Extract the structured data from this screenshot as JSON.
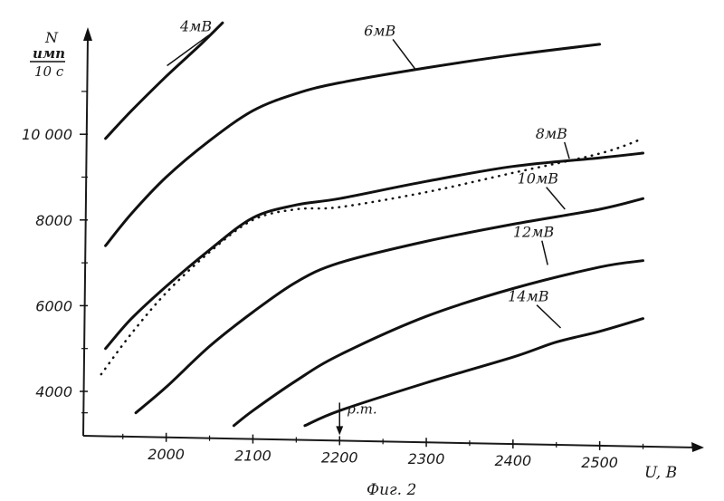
{
  "chart_data": {
    "type": "line",
    "ylabel_top": "N",
    "ylabel_unit_num": "имп",
    "ylabel_unit_den": "10 с",
    "xlabel": "U, В",
    "caption": "Фиг. 2",
    "annotation": "р.т.",
    "annotation_x": 2200,
    "xlim": [
      1920,
      2520
    ],
    "ylim": [
      3000,
      12200
    ],
    "x_ticks": [
      2000,
      2100,
      2200,
      2300,
      2400,
      2500
    ],
    "x_tick_labels": [
      "2000",
      "2100",
      "2200",
      "2300",
      "2400",
      "2500"
    ],
    "y_ticks": [
      4000,
      6000,
      8000,
      10000
    ],
    "y_tick_labels": [
      "4000",
      "6000",
      "8000",
      "10 000"
    ],
    "series": [
      {
        "name": "4мВ",
        "style": "solid",
        "label_at": [
          2016,
          12400
        ],
        "leader_to": [
          2001,
          11600
        ],
        "points": [
          [
            1930,
            9900
          ],
          [
            1960,
            10550
          ],
          [
            2000,
            11350
          ],
          [
            2040,
            12100
          ],
          [
            2065,
            12600
          ]
        ]
      },
      {
        "name": "6мВ",
        "style": "solid",
        "label_at": [
          2228,
          12300
        ],
        "leader_to": [
          2288,
          11500
        ],
        "points": [
          [
            1930,
            7400
          ],
          [
            1960,
            8150
          ],
          [
            2000,
            9000
          ],
          [
            2050,
            9850
          ],
          [
            2100,
            10550
          ],
          [
            2150,
            10950
          ],
          [
            2200,
            11200
          ],
          [
            2300,
            11550
          ],
          [
            2400,
            11850
          ],
          [
            2500,
            12100
          ]
        ]
      },
      {
        "name": "8мВ",
        "style": "solid",
        "label_at": [
          2426,
          9900
        ],
        "leader_to": [
          2465,
          9430
        ],
        "points": [
          [
            1930,
            5000
          ],
          [
            1960,
            5700
          ],
          [
            2000,
            6450
          ],
          [
            2050,
            7300
          ],
          [
            2100,
            8050
          ],
          [
            2150,
            8350
          ],
          [
            2200,
            8500
          ],
          [
            2300,
            8900
          ],
          [
            2400,
            9250
          ],
          [
            2500,
            9450
          ],
          [
            2550,
            9560
          ]
        ]
      },
      {
        "name": "",
        "style": "dotted",
        "points": [
          [
            1925,
            4400
          ],
          [
            1960,
            5350
          ],
          [
            2000,
            6300
          ],
          [
            2050,
            7250
          ],
          [
            2100,
            8000
          ],
          [
            2150,
            8250
          ],
          [
            2200,
            8300
          ],
          [
            2300,
            8650
          ],
          [
            2400,
            9100
          ],
          [
            2500,
            9550
          ],
          [
            2550,
            9900
          ]
        ]
      },
      {
        "name": "10мВ",
        "style": "solid",
        "label_at": [
          2405,
          8850
        ],
        "leader_to": [
          2460,
          8250
        ],
        "points": [
          [
            1965,
            3500
          ],
          [
            2000,
            4100
          ],
          [
            2050,
            5050
          ],
          [
            2100,
            5850
          ],
          [
            2150,
            6550
          ],
          [
            2200,
            7000
          ],
          [
            2300,
            7500
          ],
          [
            2400,
            7900
          ],
          [
            2500,
            8250
          ],
          [
            2550,
            8500
          ]
        ]
      },
      {
        "name": "12мВ",
        "style": "solid",
        "label_at": [
          2400,
          7600
        ],
        "leader_to": [
          2440,
          6950
        ],
        "points": [
          [
            2078,
            3200
          ],
          [
            2100,
            3550
          ],
          [
            2150,
            4250
          ],
          [
            2200,
            4850
          ],
          [
            2300,
            5750
          ],
          [
            2400,
            6400
          ],
          [
            2500,
            6900
          ],
          [
            2550,
            7050
          ]
        ]
      },
      {
        "name": "14мВ",
        "style": "solid",
        "label_at": [
          2394,
          6100
        ],
        "leader_to": [
          2455,
          5480
        ],
        "points": [
          [
            2160,
            3200
          ],
          [
            2200,
            3550
          ],
          [
            2300,
            4200
          ],
          [
            2400,
            4800
          ],
          [
            2450,
            5150
          ],
          [
            2500,
            5400
          ],
          [
            2550,
            5700
          ]
        ]
      }
    ]
  }
}
